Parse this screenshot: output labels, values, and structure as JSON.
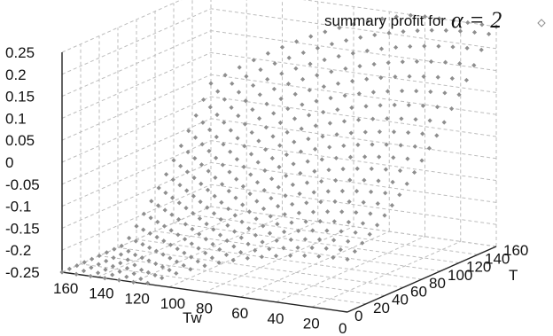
{
  "chart_data": {
    "type": "scatter",
    "legend": {
      "text": "summary profit for",
      "math": "α = 2",
      "marker": "diamond"
    },
    "xlabel": "Tw",
    "ylabel": "T",
    "xticks": [
      "160",
      "140",
      "120",
      "100",
      "80",
      "60",
      "40",
      "20",
      "0"
    ],
    "yticks": [
      "0",
      "20",
      "40",
      "60",
      "80",
      "100",
      "120",
      "140",
      "160"
    ],
    "zticks": [
      "0.25",
      "0.2",
      "0.15",
      "0.1",
      "0.05",
      "0",
      "-0.05",
      "-0.1",
      "-0.15",
      "-0.2",
      "-0.25"
    ],
    "xlim": [
      0,
      160
    ],
    "ylim": [
      0,
      160
    ],
    "zlim": [
      -0.25,
      0.25
    ],
    "grid": true,
    "sample_points": [
      {
        "Tw": 20,
        "T": 160,
        "profit": 0.18
      },
      {
        "Tw": 60,
        "T": 160,
        "profit": 0.22
      },
      {
        "Tw": 100,
        "T": 160,
        "profit": 0.2
      },
      {
        "Tw": 140,
        "T": 160,
        "profit": 0.12
      },
      {
        "Tw": 20,
        "T": 80,
        "profit": 0.1
      },
      {
        "Tw": 60,
        "T": 80,
        "profit": 0.0
      },
      {
        "Tw": 100,
        "T": 80,
        "profit": -0.08
      },
      {
        "Tw": 140,
        "T": 80,
        "profit": -0.12
      },
      {
        "Tw": 20,
        "T": 20,
        "profit": 0.05
      },
      {
        "Tw": 60,
        "T": 20,
        "profit": -0.05
      },
      {
        "Tw": 100,
        "T": 20,
        "profit": -0.15
      },
      {
        "Tw": 140,
        "T": 20,
        "profit": -0.2
      }
    ]
  }
}
